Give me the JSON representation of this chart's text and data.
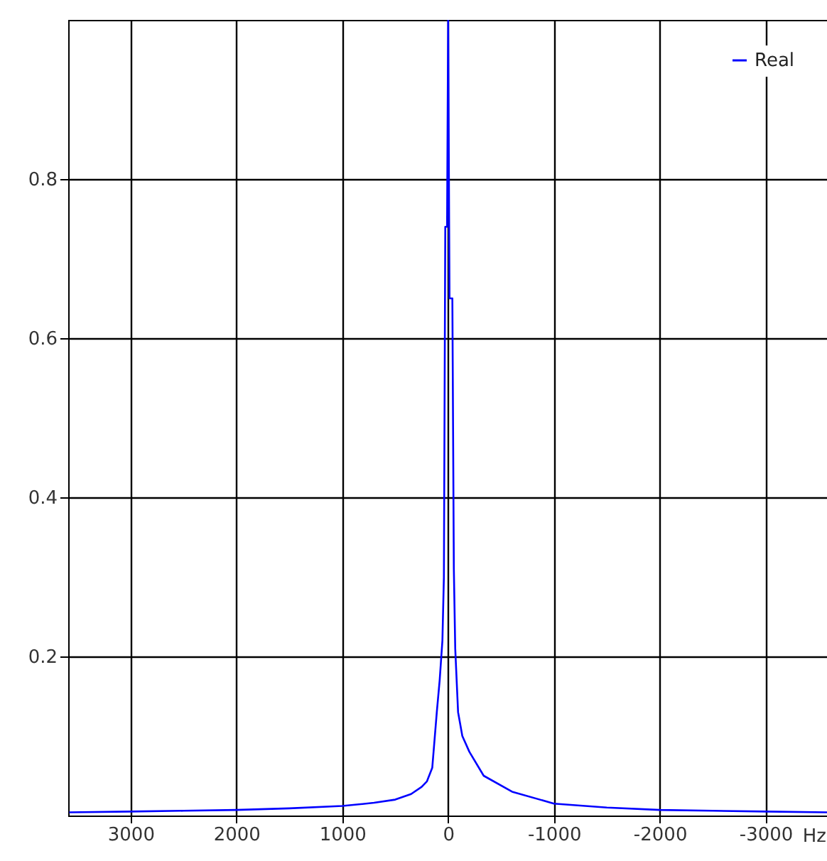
{
  "chart_data": {
    "type": "line",
    "xlabel": "Hz",
    "legend": "top right",
    "grid": true,
    "marker": "none",
    "line_style": "solid",
    "xlim": [
      3590,
      -3580
    ],
    "xticks": [
      3000,
      2000,
      1000,
      0,
      -1000,
      -2000,
      -3000
    ],
    "ylim": [
      0,
      1.0
    ],
    "yticks": [
      0.2,
      0.4,
      0.6,
      0.8
    ],
    "x": [
      3580,
      3000,
      2500,
      2000,
      1500,
      1000,
      700,
      500,
      350,
      250,
      200,
      150,
      107,
      80,
      54,
      40,
      27,
      10,
      0,
      -13,
      -40,
      -54,
      -67,
      -94,
      -134,
      -201,
      -336,
      -604,
      -1000,
      -1500,
      -2000,
      -2500,
      -3000,
      -3580
    ],
    "series": [
      {
        "name": "Real",
        "color": "#0000ff",
        "values": [
          0.004,
          0.005,
          0.006,
          0.007,
          0.009,
          0.012,
          0.016,
          0.02,
          0.027,
          0.036,
          0.043,
          0.06,
          0.13,
          0.17,
          0.22,
          0.3,
          0.74,
          0.74,
          1.0,
          0.65,
          0.65,
          0.31,
          0.21,
          0.13,
          0.1,
          0.08,
          0.05,
          0.03,
          0.015,
          0.01,
          0.007,
          0.006,
          0.005,
          0.004
        ]
      }
    ]
  }
}
